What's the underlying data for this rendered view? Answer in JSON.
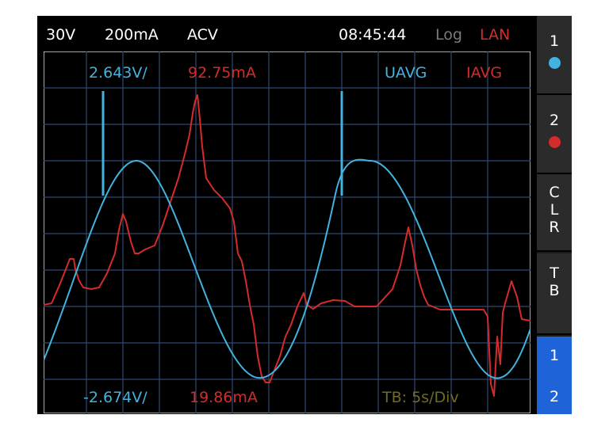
{
  "header": {
    "voltage_range": "30V",
    "current_range": "200mA",
    "mode": "ACV",
    "time": "08:45:44",
    "log_label": "Log",
    "lan_label": "LAN"
  },
  "readout": {
    "max_voltage": "2.643V/",
    "max_current": "92.75mA",
    "min_voltage": "-2.674V/",
    "min_current": "19.86mA",
    "voltage_trace_label": "UAVG",
    "current_trace_label": "IAVG",
    "timebase": "TB: 5s/Div"
  },
  "sidebar": {
    "ch1_label": "1",
    "ch2_label": "2",
    "clear_letters": [
      "C",
      "L",
      "R"
    ],
    "timebase_letters": [
      "T",
      "B"
    ],
    "both_top": "1",
    "both_bottom": "2"
  },
  "colors": {
    "voltage": "#43b2de",
    "current": "#d42b2b",
    "grid": "#2e4a73",
    "timebase_text": "#6f6a28",
    "log_text": "#7a7a7a",
    "active_button": "#1f63d8"
  }
}
